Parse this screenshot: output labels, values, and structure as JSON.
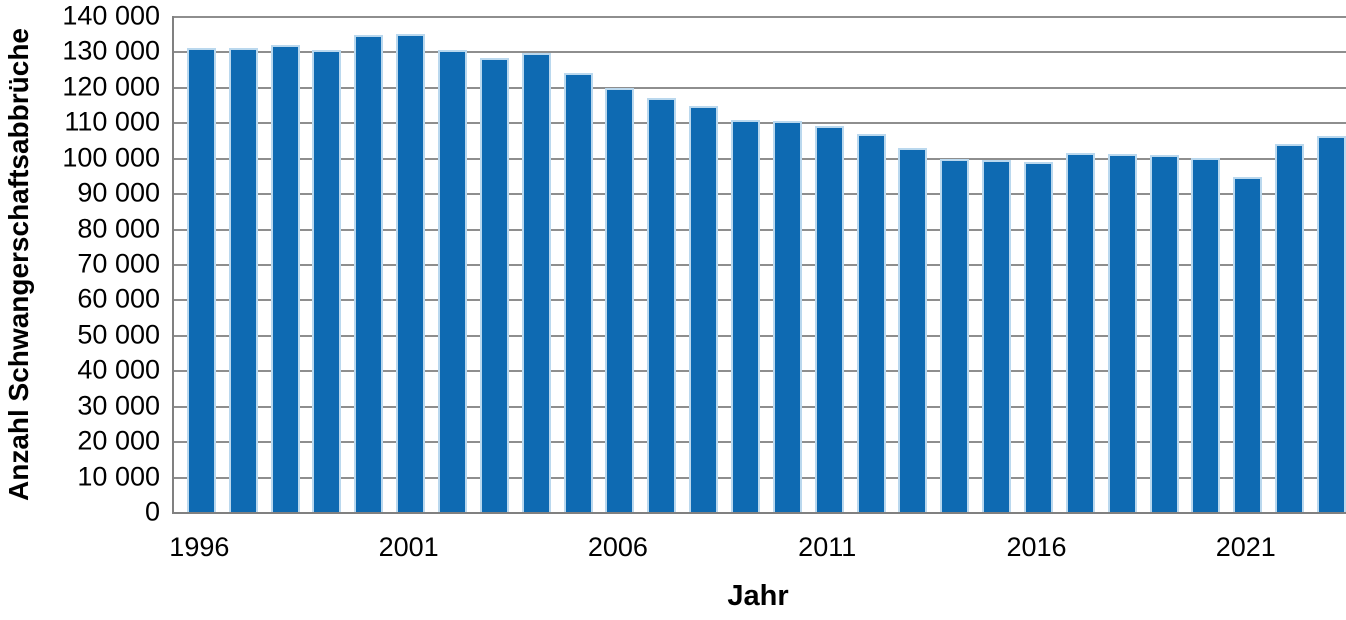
{
  "chart_data": {
    "type": "bar",
    "title": "",
    "xlabel": "Jahr",
    "ylabel": "Anzahl Schwangerschaftsabbrüche",
    "categories": [
      1996,
      1997,
      1998,
      1999,
      2000,
      2001,
      2002,
      2003,
      2004,
      2005,
      2006,
      2007,
      2008,
      2009,
      2010,
      2011,
      2012,
      2013,
      2014,
      2015,
      2016,
      2017,
      2018,
      2019,
      2020,
      2021,
      2022,
      2023
    ],
    "values": [
      130899,
      130890,
      131795,
      130471,
      134609,
      134964,
      130387,
      128030,
      129650,
      124023,
      119710,
      116871,
      114484,
      110694,
      110431,
      108867,
      106815,
      102802,
      99715,
      99237,
      98721,
      101209,
      100986,
      100893,
      99948,
      94596,
      103927,
      106218
    ],
    "ylim": [
      0,
      140000
    ],
    "y_ticks": [
      {
        "value": 140000,
        "label": "140 000"
      },
      {
        "value": 130000,
        "label": "130 000"
      },
      {
        "value": 120000,
        "label": "120 000"
      },
      {
        "value": 110000,
        "label": "110 000"
      },
      {
        "value": 100000,
        "label": "100 000"
      },
      {
        "value": 90000,
        "label": "90 000"
      },
      {
        "value": 80000,
        "label": "80 000"
      },
      {
        "value": 70000,
        "label": "70 000"
      },
      {
        "value": 60000,
        "label": "60 000"
      },
      {
        "value": 50000,
        "label": "50 000"
      },
      {
        "value": 40000,
        "label": "40 000"
      },
      {
        "value": 30000,
        "label": "30 000"
      },
      {
        "value": 20000,
        "label": "20 000"
      },
      {
        "value": 10000,
        "label": "10 000"
      },
      {
        "value": 0,
        "label": "0"
      }
    ],
    "x_ticks": [
      {
        "index": 0,
        "label": "1996"
      },
      {
        "index": 5,
        "label": "2001"
      },
      {
        "index": 10,
        "label": "2006"
      },
      {
        "index": 15,
        "label": "2011"
      },
      {
        "index": 20,
        "label": "2016"
      },
      {
        "index": 25,
        "label": "2021"
      }
    ],
    "grid": true,
    "legend": false,
    "colors": {
      "bar_fill": "#0e6ab2",
      "bar_edge": "#bad8ee",
      "gridline": "#8e8e8e",
      "axis_line": "#808080",
      "text": "#000000"
    }
  }
}
